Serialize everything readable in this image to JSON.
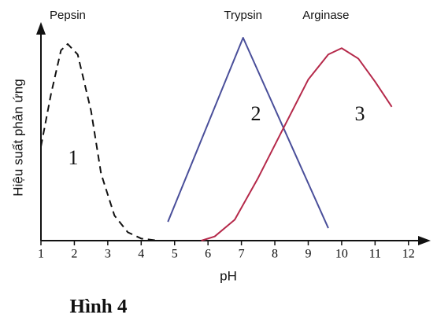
{
  "chart_data": {
    "type": "line",
    "y_label": "Hiệu suất phản ứng",
    "x_label": "pH",
    "caption": "Hình 4",
    "xlim": [
      1,
      12.5
    ],
    "xticks": [
      1,
      2,
      3,
      4,
      5,
      6,
      7,
      8,
      9,
      10,
      11,
      12
    ],
    "ylim": [
      0,
      100
    ],
    "series": [
      {
        "name": "Pepsin",
        "color": "#111111",
        "dashed": true,
        "x": [
          1,
          1.3,
          1.6,
          1.8,
          2.1,
          2.5,
          2.8,
          3.2,
          3.6,
          4,
          4.5
        ],
        "values": [
          45,
          70,
          91,
          94,
          89,
          62,
          32,
          12,
          4,
          1,
          0
        ]
      },
      {
        "name": "Trypsin",
        "color": "#4a4f9a",
        "dashed": false,
        "x": [
          4.8,
          7.05,
          9.6
        ],
        "values": [
          9,
          97,
          6
        ]
      },
      {
        "name": "Arginase",
        "color": "#b5294a",
        "dashed": false,
        "x": [
          5.8,
          6.2,
          6.8,
          7.5,
          8.2,
          9,
          9.6,
          10,
          10.5,
          11,
          11.5
        ],
        "values": [
          0,
          2,
          10,
          30,
          52,
          77,
          89,
          92,
          87,
          76,
          64
        ]
      }
    ],
    "annotations": [
      "1",
      "2",
      "3"
    ]
  }
}
